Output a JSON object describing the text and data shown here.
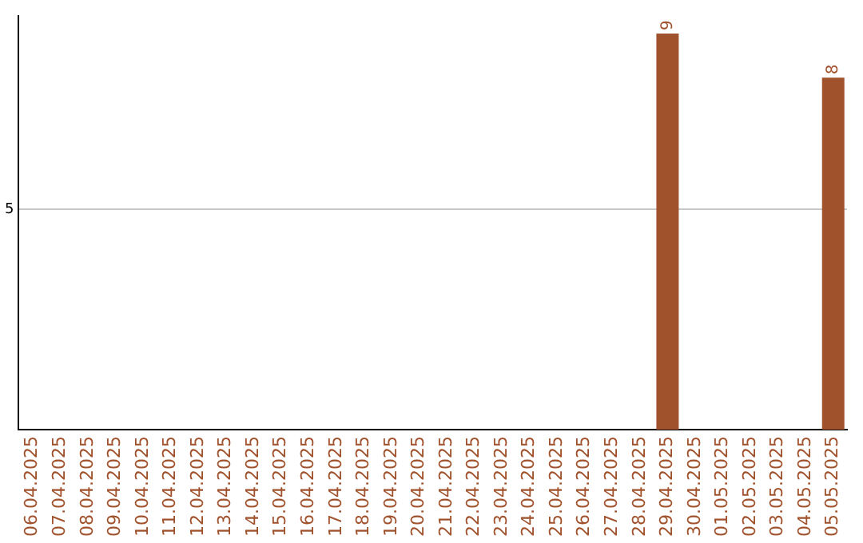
{
  "chart_data": {
    "type": "bar",
    "categories": [
      "06.04.2025",
      "07.04.2025",
      "08.04.2025",
      "09.04.2025",
      "10.04.2025",
      "11.04.2025",
      "12.04.2025",
      "13.04.2025",
      "14.04.2025",
      "15.04.2025",
      "16.04.2025",
      "17.04.2025",
      "18.04.2025",
      "19.04.2025",
      "20.04.2025",
      "21.04.2025",
      "22.04.2025",
      "23.04.2025",
      "24.04.2025",
      "25.04.2025",
      "26.04.2025",
      "27.04.2025",
      "28.04.2025",
      "29.04.2025",
      "30.04.2025",
      "01.05.2025",
      "02.05.2025",
      "03.05.2025",
      "04.05.2025",
      "05.05.2025"
    ],
    "values": [
      null,
      null,
      null,
      null,
      null,
      null,
      null,
      null,
      null,
      null,
      null,
      null,
      null,
      null,
      null,
      null,
      null,
      null,
      null,
      null,
      null,
      null,
      null,
      9,
      null,
      null,
      null,
      null,
      null,
      8
    ],
    "color": "#a0522d",
    "ylim": [
      0,
      9.4
    ],
    "yticks": [
      5
    ],
    "grid": "y",
    "data_labels": true,
    "legend": false
  }
}
